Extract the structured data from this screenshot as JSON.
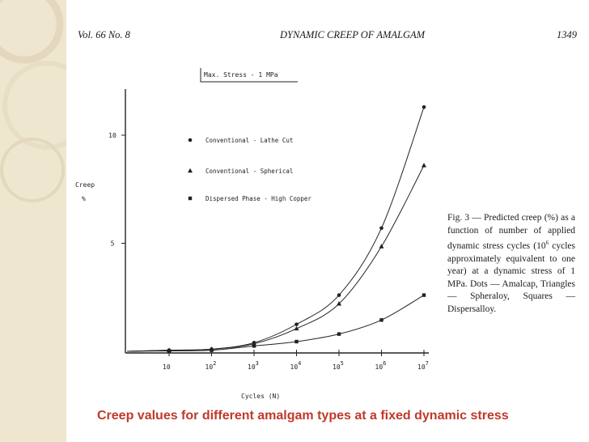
{
  "slide": {
    "title": "Creep values for different amalgam types at a fixed dynamic stress"
  },
  "page": {
    "header_left": "Vol. 66 No. 8",
    "header_center": "DYNAMIC CREEP OF AMALGAM",
    "header_right": "1349",
    "caption_html": "Fig. 3 — Predicted creep (%) as a function of number of applied dynamic stress cycles (10<sup>6</sup> cycles approximately equivalent to one year) at a dynamic stress of 1 MPa. Dots — Amalcap, Triangles — Spheraloy, Squares — Dispersalloy."
  },
  "colors": {
    "title": "#c0392b",
    "band": "#efe6cf",
    "ink": "#222222"
  },
  "chart_data": {
    "type": "line",
    "title": "Max. Stress - 1 MPa",
    "xlabel": "Cycles (N)",
    "ylabel": "Creep",
    "ylabel_unit": "%",
    "x_scale": "log",
    "x": [
      1,
      10,
      100,
      1000,
      10000,
      100000,
      1000000,
      10000000
    ],
    "xticks": [
      {
        "base": "10",
        "exp": ""
      },
      {
        "base": "10",
        "exp": "2"
      },
      {
        "base": "10",
        "exp": "3"
      },
      {
        "base": "10",
        "exp": "4"
      },
      {
        "base": "10",
        "exp": "5"
      },
      {
        "base": "10",
        "exp": "6"
      },
      {
        "base": "10",
        "exp": "7"
      }
    ],
    "yticks": [
      "5",
      "10"
    ],
    "ylim": [
      0,
      11
    ],
    "series": [
      {
        "name": "Conventional - Lathe Cut",
        "marker": "circle",
        "values": [
          0.0,
          0.05,
          0.1,
          0.4,
          1.25,
          2.6,
          5.7,
          11.3
        ]
      },
      {
        "name": "Conventional - Spherical",
        "marker": "triangle",
        "values": [
          0.0,
          0.05,
          0.1,
          0.35,
          1.05,
          2.2,
          4.85,
          8.6
        ]
      },
      {
        "name": "Dispersed Phase - High Copper",
        "marker": "square",
        "values": [
          0.0,
          0.02,
          0.05,
          0.25,
          0.45,
          0.8,
          1.45,
          2.6
        ]
      }
    ]
  }
}
